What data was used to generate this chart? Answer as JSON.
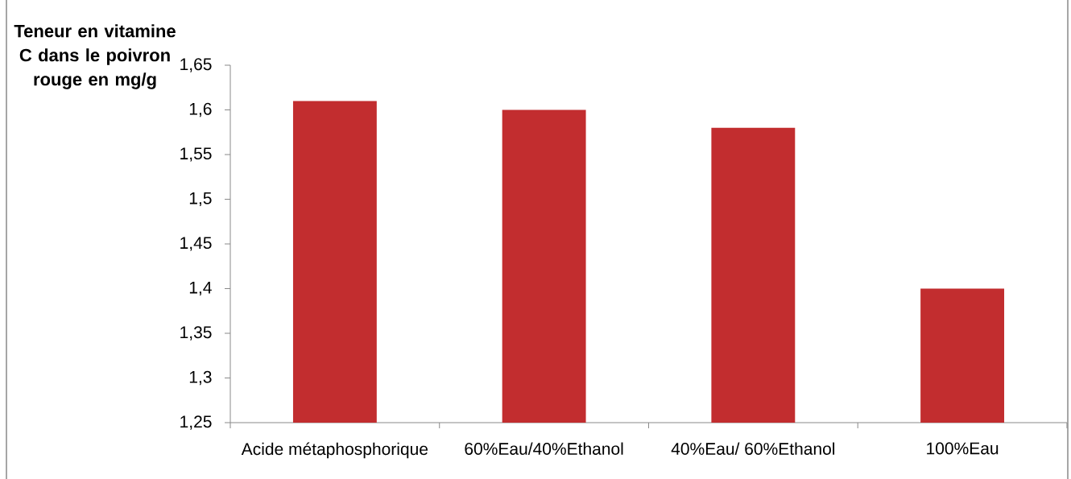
{
  "chart_data": {
    "type": "bar",
    "ylabel": "Teneur en vitamine C dans le poivron rouge en mg/g",
    "categories": [
      "Acide métaphosphorique",
      "60%Eau/40%Ethanol",
      "40%Eau/ 60%Ethanol",
      "100%Eau"
    ],
    "values": [
      1.61,
      1.6,
      1.58,
      1.4
    ],
    "color": "#c22d2f",
    "ylim": [
      1.25,
      1.65
    ],
    "yticks": [
      {
        "value": 1.25,
        "label": "1,25"
      },
      {
        "value": 1.3,
        "label": "1,3"
      },
      {
        "value": 1.35,
        "label": "1,35"
      },
      {
        "value": 1.4,
        "label": "1,4"
      },
      {
        "value": 1.45,
        "label": "1,45"
      },
      {
        "value": 1.5,
        "label": "1,5"
      },
      {
        "value": 1.55,
        "label": "1,55"
      },
      {
        "value": 1.6,
        "label": "1,6"
      },
      {
        "value": 1.65,
        "label": "1,65"
      }
    ]
  }
}
